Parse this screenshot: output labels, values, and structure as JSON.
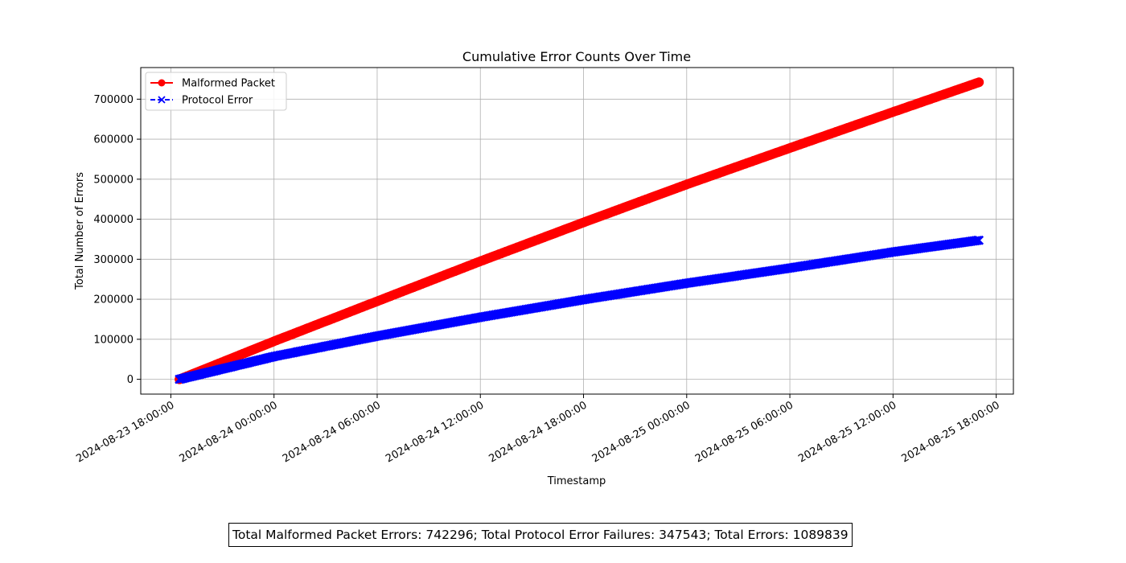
{
  "chart_data": {
    "type": "line",
    "title": "Cumulative Error Counts Over Time",
    "xlabel": "Timestamp",
    "ylabel": "Total Number of Errors",
    "x_ticks": [
      "2024-08-23 18:00:00",
      "2024-08-24 00:00:00",
      "2024-08-24 06:00:00",
      "2024-08-24 12:00:00",
      "2024-08-24 18:00:00",
      "2024-08-25 00:00:00",
      "2024-08-25 06:00:00",
      "2024-08-25 12:00:00",
      "2024-08-25 18:00:00"
    ],
    "y_ticks": [
      0,
      100000,
      200000,
      300000,
      400000,
      500000,
      600000,
      700000
    ],
    "xlim": [
      "2024-08-23 16:15:00",
      "2024-08-25 19:00:00"
    ],
    "ylim": [
      -37000,
      779000
    ],
    "grid": true,
    "legend_position": "top-left",
    "series": [
      {
        "name": "Malformed Packet",
        "color": "#ff0000",
        "marker": "circle",
        "linestyle": "solid",
        "x": [
          "2024-08-23 18:30:00",
          "2024-08-24 00:00:00",
          "2024-08-24 06:00:00",
          "2024-08-24 12:00:00",
          "2024-08-24 18:00:00",
          "2024-08-25 00:00:00",
          "2024-08-25 06:00:00",
          "2024-08-25 12:00:00",
          "2024-08-25 17:00:00"
        ],
        "values": [
          0,
          95000,
          195000,
          295000,
          392000,
          487000,
          578000,
          668000,
          742296
        ]
      },
      {
        "name": "Protocol Error",
        "color": "#0000ff",
        "marker": "x",
        "linestyle": "dashed",
        "x": [
          "2024-08-23 18:30:00",
          "2024-08-24 00:00:00",
          "2024-08-24 06:00:00",
          "2024-08-24 12:00:00",
          "2024-08-24 18:00:00",
          "2024-08-25 00:00:00",
          "2024-08-25 06:00:00",
          "2024-08-25 12:00:00",
          "2024-08-25 17:00:00"
        ],
        "values": [
          0,
          57000,
          108000,
          155000,
          199000,
          240000,
          278000,
          318000,
          347543
        ]
      }
    ]
  },
  "summary": "Total Malformed Packet Errors: 742296; Total Protocol Error Failures: 347543; Total Errors: 1089839"
}
